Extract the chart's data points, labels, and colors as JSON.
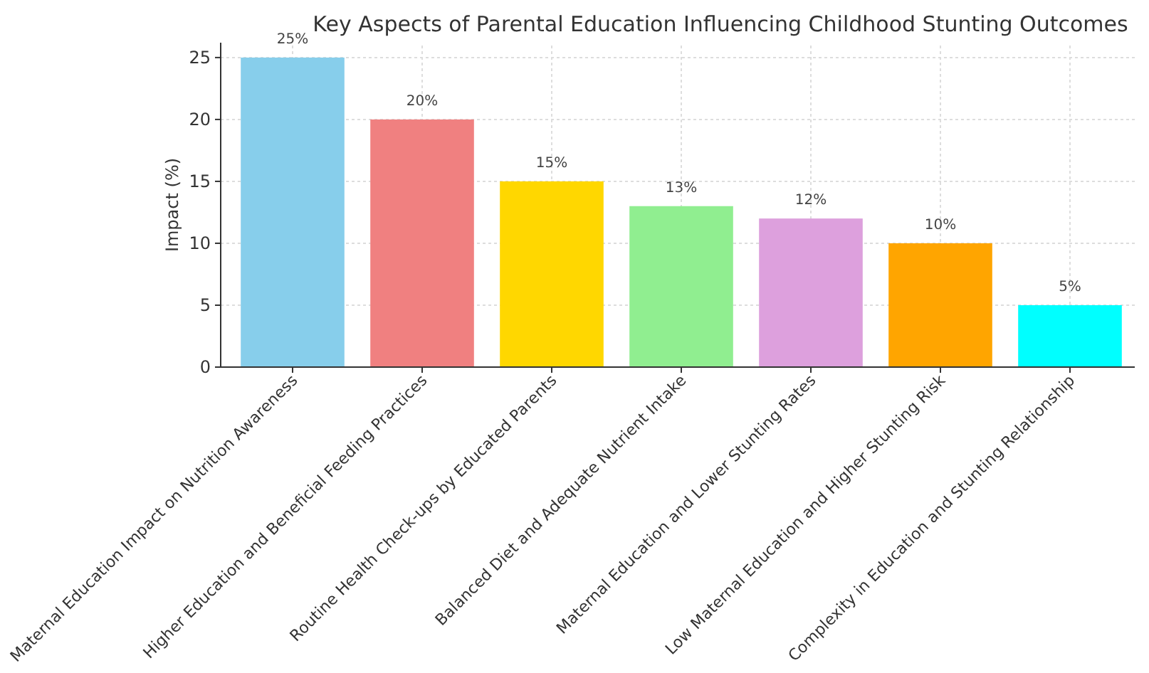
{
  "chart_data": {
    "type": "bar",
    "title": "Key Aspects of Parental Education Influencing Childhood Stunting Outcomes",
    "ylabel": "Impact (%)",
    "categories": [
      "Maternal Education Impact on Nutrition Awareness",
      "Higher Education and Beneficial Feeding Practices",
      "Routine Health Check-ups by Educated Parents",
      "Balanced Diet and Adequate Nutrient Intake",
      "Maternal Education and Lower Stunting Rates",
      "Low Maternal Education and Higher Stunting Risk",
      "Complexity in Education and Stunting Relationship"
    ],
    "values": [
      25,
      20,
      15,
      13,
      12,
      10,
      5
    ],
    "colors": [
      "#87ceeb",
      "#f08080",
      "#ffd700",
      "#90ee90",
      "#dda0dd",
      "#ffa500",
      "#00ffff"
    ],
    "value_labels": [
      "25%",
      "20%",
      "15%",
      "13%",
      "12%",
      "10%",
      "5%"
    ],
    "ylim": [
      0,
      26.2
    ],
    "yticks": [
      0,
      5,
      10,
      15,
      20,
      25
    ],
    "grid": true
  }
}
